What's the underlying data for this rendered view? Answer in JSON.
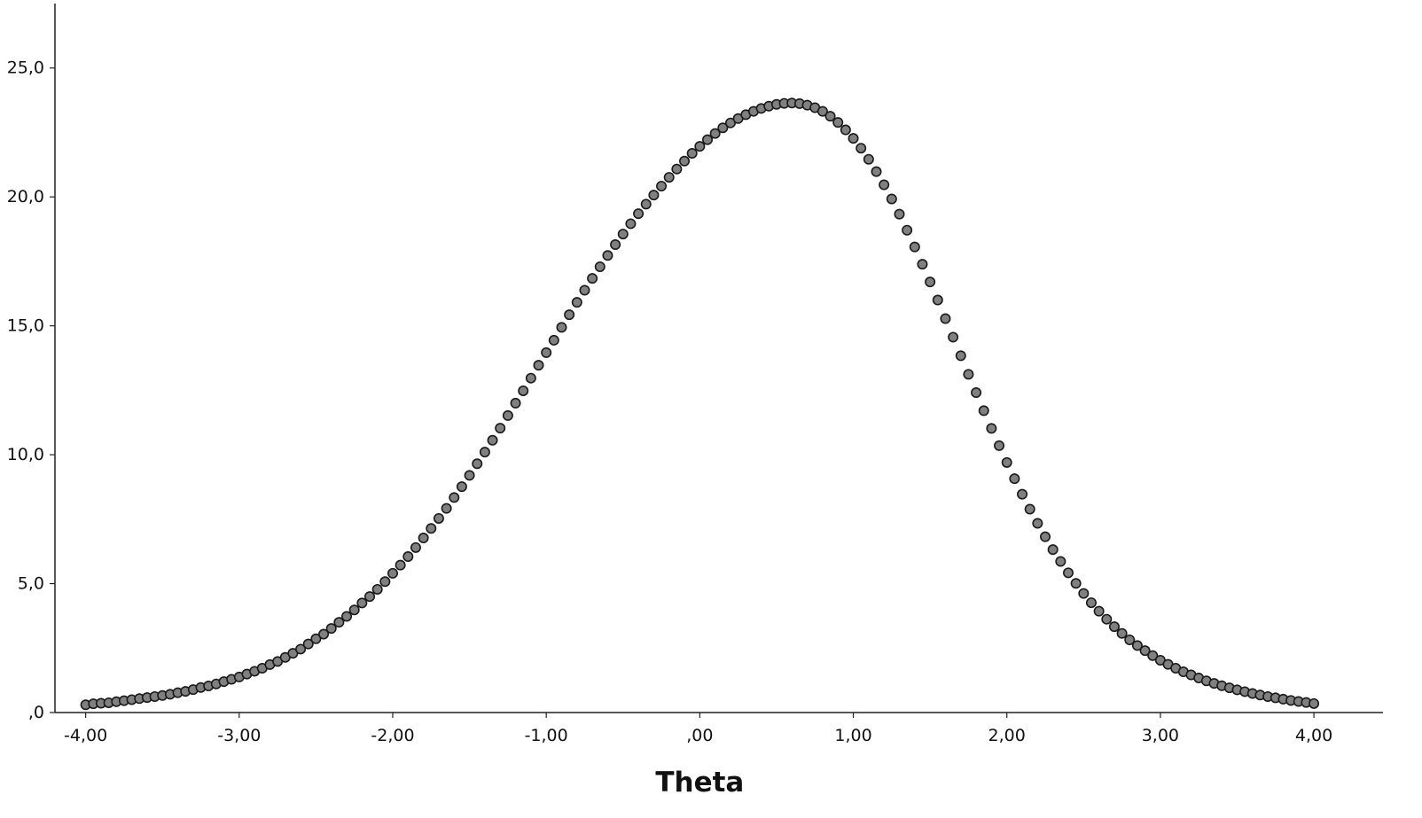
{
  "chart_data": {
    "type": "scatter",
    "title": "",
    "xlabel": "Theta",
    "ylabel": "",
    "xlim": [
      -4.2,
      4.45
    ],
    "ylim": [
      0,
      27.5
    ],
    "x_ticks": [
      {
        "value": -4,
        "label": "-4,00"
      },
      {
        "value": -3,
        "label": "-3,00"
      },
      {
        "value": -2,
        "label": "-2,00"
      },
      {
        "value": -1,
        "label": "-1,00"
      },
      {
        "value": 0,
        "label": ",00"
      },
      {
        "value": 1,
        "label": "1,00"
      },
      {
        "value": 2,
        "label": "2,00"
      },
      {
        "value": 3,
        "label": "3,00"
      },
      {
        "value": 4,
        "label": "4,00"
      }
    ],
    "y_ticks": [
      {
        "value": 0,
        "label": ",0"
      },
      {
        "value": 5,
        "label": "5,0"
      },
      {
        "value": 10,
        "label": "10,0"
      },
      {
        "value": 15,
        "label": "15,0"
      },
      {
        "value": 20,
        "label": "20,0"
      },
      {
        "value": 25,
        "label": "25,0"
      }
    ],
    "grid": false,
    "legend": "none",
    "marker_fill": "#808080",
    "marker_stroke": "#1a1a1a",
    "points": {
      "x": [
        -4.0,
        -3.95,
        -3.9,
        -3.85,
        -3.8,
        -3.75,
        -3.7,
        -3.65,
        -3.6,
        -3.55,
        -3.5,
        -3.45,
        -3.4,
        -3.35,
        -3.3,
        -3.25,
        -3.2,
        -3.15,
        -3.1,
        -3.05,
        -3.0,
        -2.95,
        -2.9,
        -2.85,
        -2.8,
        -2.75,
        -2.7,
        -2.65,
        -2.6,
        -2.55,
        -2.5,
        -2.45,
        -2.4,
        -2.35,
        -2.3,
        -2.25,
        -2.2,
        -2.15,
        -2.1,
        -2.05,
        -2.0,
        -1.95,
        -1.9,
        -1.85,
        -1.8,
        -1.75,
        -1.7,
        -1.65,
        -1.6,
        -1.55,
        -1.5,
        -1.45,
        -1.4,
        -1.35,
        -1.3,
        -1.25,
        -1.2,
        -1.15,
        -1.1,
        -1.05,
        -1.0,
        -0.95,
        -0.9,
        -0.85,
        -0.8,
        -0.75,
        -0.7,
        -0.65,
        -0.6,
        -0.55,
        -0.5,
        -0.45,
        -0.4,
        -0.35,
        -0.3,
        -0.25,
        -0.2,
        -0.15,
        -0.1,
        -0.05,
        0.0,
        0.05,
        0.1,
        0.15,
        0.2,
        0.25,
        0.3,
        0.35,
        0.4,
        0.45,
        0.5,
        0.55,
        0.6,
        0.65,
        0.7,
        0.75,
        0.8,
        0.85,
        0.9,
        0.95,
        1.0,
        1.05,
        1.1,
        1.15,
        1.2,
        1.25,
        1.3,
        1.35,
        1.4,
        1.45,
        1.5,
        1.55,
        1.6,
        1.65,
        1.7,
        1.75,
        1.8,
        1.85,
        1.9,
        1.95,
        2.0,
        2.05,
        2.1,
        2.15,
        2.2,
        2.25,
        2.3,
        2.35,
        2.4,
        2.45,
        2.5,
        2.55,
        2.6,
        2.65,
        2.7,
        2.75,
        2.8,
        2.85,
        2.9,
        2.95,
        3.0,
        3.05,
        3.1,
        3.15,
        3.2,
        3.25,
        3.3,
        3.35,
        3.4,
        3.45,
        3.5,
        3.55,
        3.6,
        3.65,
        3.7,
        3.75,
        3.8,
        3.85,
        3.9,
        3.95,
        4.0
      ],
      "y": [
        0.3,
        0.34,
        0.36,
        0.38,
        0.42,
        0.46,
        0.5,
        0.54,
        0.58,
        0.62,
        0.66,
        0.71,
        0.77,
        0.82,
        0.89,
        0.97,
        1.03,
        1.11,
        1.2,
        1.29,
        1.38,
        1.49,
        1.6,
        1.72,
        1.86,
        1.98,
        2.14,
        2.3,
        2.46,
        2.66,
        2.86,
        3.04,
        3.26,
        3.5,
        3.73,
        3.98,
        4.25,
        4.5,
        4.78,
        5.08,
        5.4,
        5.72,
        6.05,
        6.4,
        6.77,
        7.14,
        7.53,
        7.92,
        8.34,
        8.76,
        9.2,
        9.65,
        10.1,
        10.56,
        11.03,
        11.52,
        12.0,
        12.48,
        12.97,
        13.47,
        13.96,
        14.44,
        14.94,
        15.43,
        15.91,
        16.38,
        16.84,
        17.29,
        17.73,
        18.15,
        18.56,
        18.96,
        19.35,
        19.72,
        20.07,
        20.42,
        20.76,
        21.08,
        21.39,
        21.69,
        21.96,
        22.22,
        22.46,
        22.68,
        22.87,
        23.04,
        23.19,
        23.32,
        23.43,
        23.52,
        23.59,
        23.63,
        23.64,
        23.62,
        23.56,
        23.46,
        23.32,
        23.13,
        22.89,
        22.6,
        22.27,
        21.89,
        21.46,
        20.98,
        20.47,
        19.92,
        19.33,
        18.71,
        18.06,
        17.39,
        16.7,
        16.0,
        15.28,
        14.56,
        13.84,
        13.12,
        12.41,
        11.71,
        11.02,
        10.35,
        9.7,
        9.07,
        8.47,
        7.89,
        7.34,
        6.82,
        6.32,
        5.86,
        5.42,
        5.01,
        4.62,
        4.26,
        3.93,
        3.62,
        3.33,
        3.07,
        2.82,
        2.6,
        2.4,
        2.21,
        2.03,
        1.87,
        1.72,
        1.58,
        1.46,
        1.34,
        1.23,
        1.13,
        1.04,
        0.96,
        0.88,
        0.81,
        0.74,
        0.68,
        0.62,
        0.57,
        0.52,
        0.47,
        0.43,
        0.39,
        0.35
      ]
    }
  }
}
